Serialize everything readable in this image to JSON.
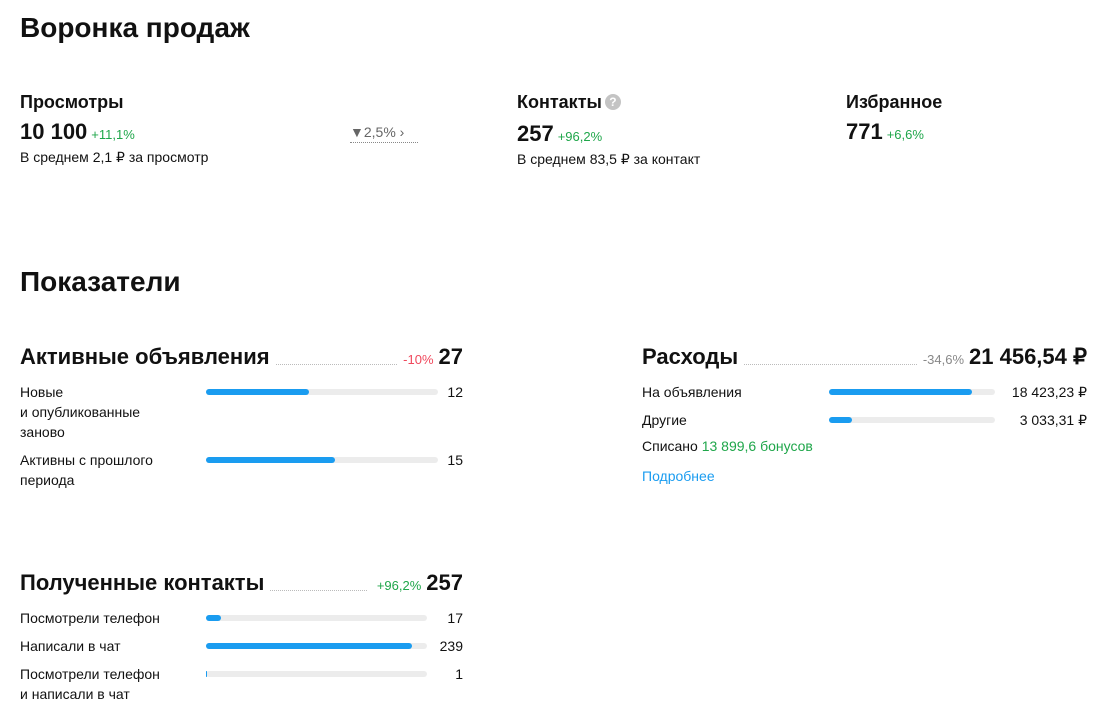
{
  "funnel": {
    "title": "Воронка продаж",
    "metrics": [
      {
        "label": "Просмотры",
        "value": "10 100",
        "change": "+11,1%",
        "note": "В среднем 2,1 ₽ за просмотр",
        "conversion": "2,5%"
      },
      {
        "label": "Контакты",
        "value": "257",
        "change": "+96,2%",
        "note": "В среднем 83,5 ₽ за контакт"
      },
      {
        "label": "Избранное",
        "value": "771",
        "change": "+6,6%"
      }
    ]
  },
  "indicators": {
    "title": "Показатели",
    "active_ads": {
      "title": "Активные объявления",
      "change": "-10%",
      "total": 27,
      "items": [
        {
          "label": "Новые\nи опубликованные\nзаново",
          "value": 12
        },
        {
          "label": "Активны с прошлого\nпериода",
          "value": 15
        }
      ]
    },
    "expenses": {
      "title": "Расходы",
      "change": "-34,6%",
      "total": {
        "value": 21456.54,
        "label": "21 456,54 ₽"
      },
      "items": [
        {
          "label": "На объявления",
          "value": 18423.23,
          "value_label": "18 423,23 ₽"
        },
        {
          "label": "Другие",
          "value": 3033.31,
          "value_label": "3 033,31 ₽"
        }
      ],
      "written_off": {
        "label": "Списано",
        "amount": "13 899,6 бонусов"
      },
      "link": "Подробнее"
    },
    "contacts": {
      "title": "Полученные контакты",
      "change": "+96,2%",
      "total": 257,
      "items": [
        {
          "label": "Посмотрели телефон",
          "value": 17
        },
        {
          "label": "Написали в чат",
          "value": 239
        },
        {
          "label": "Посмотрели телефон\nи написали в чат",
          "value": 1
        }
      ]
    }
  }
}
